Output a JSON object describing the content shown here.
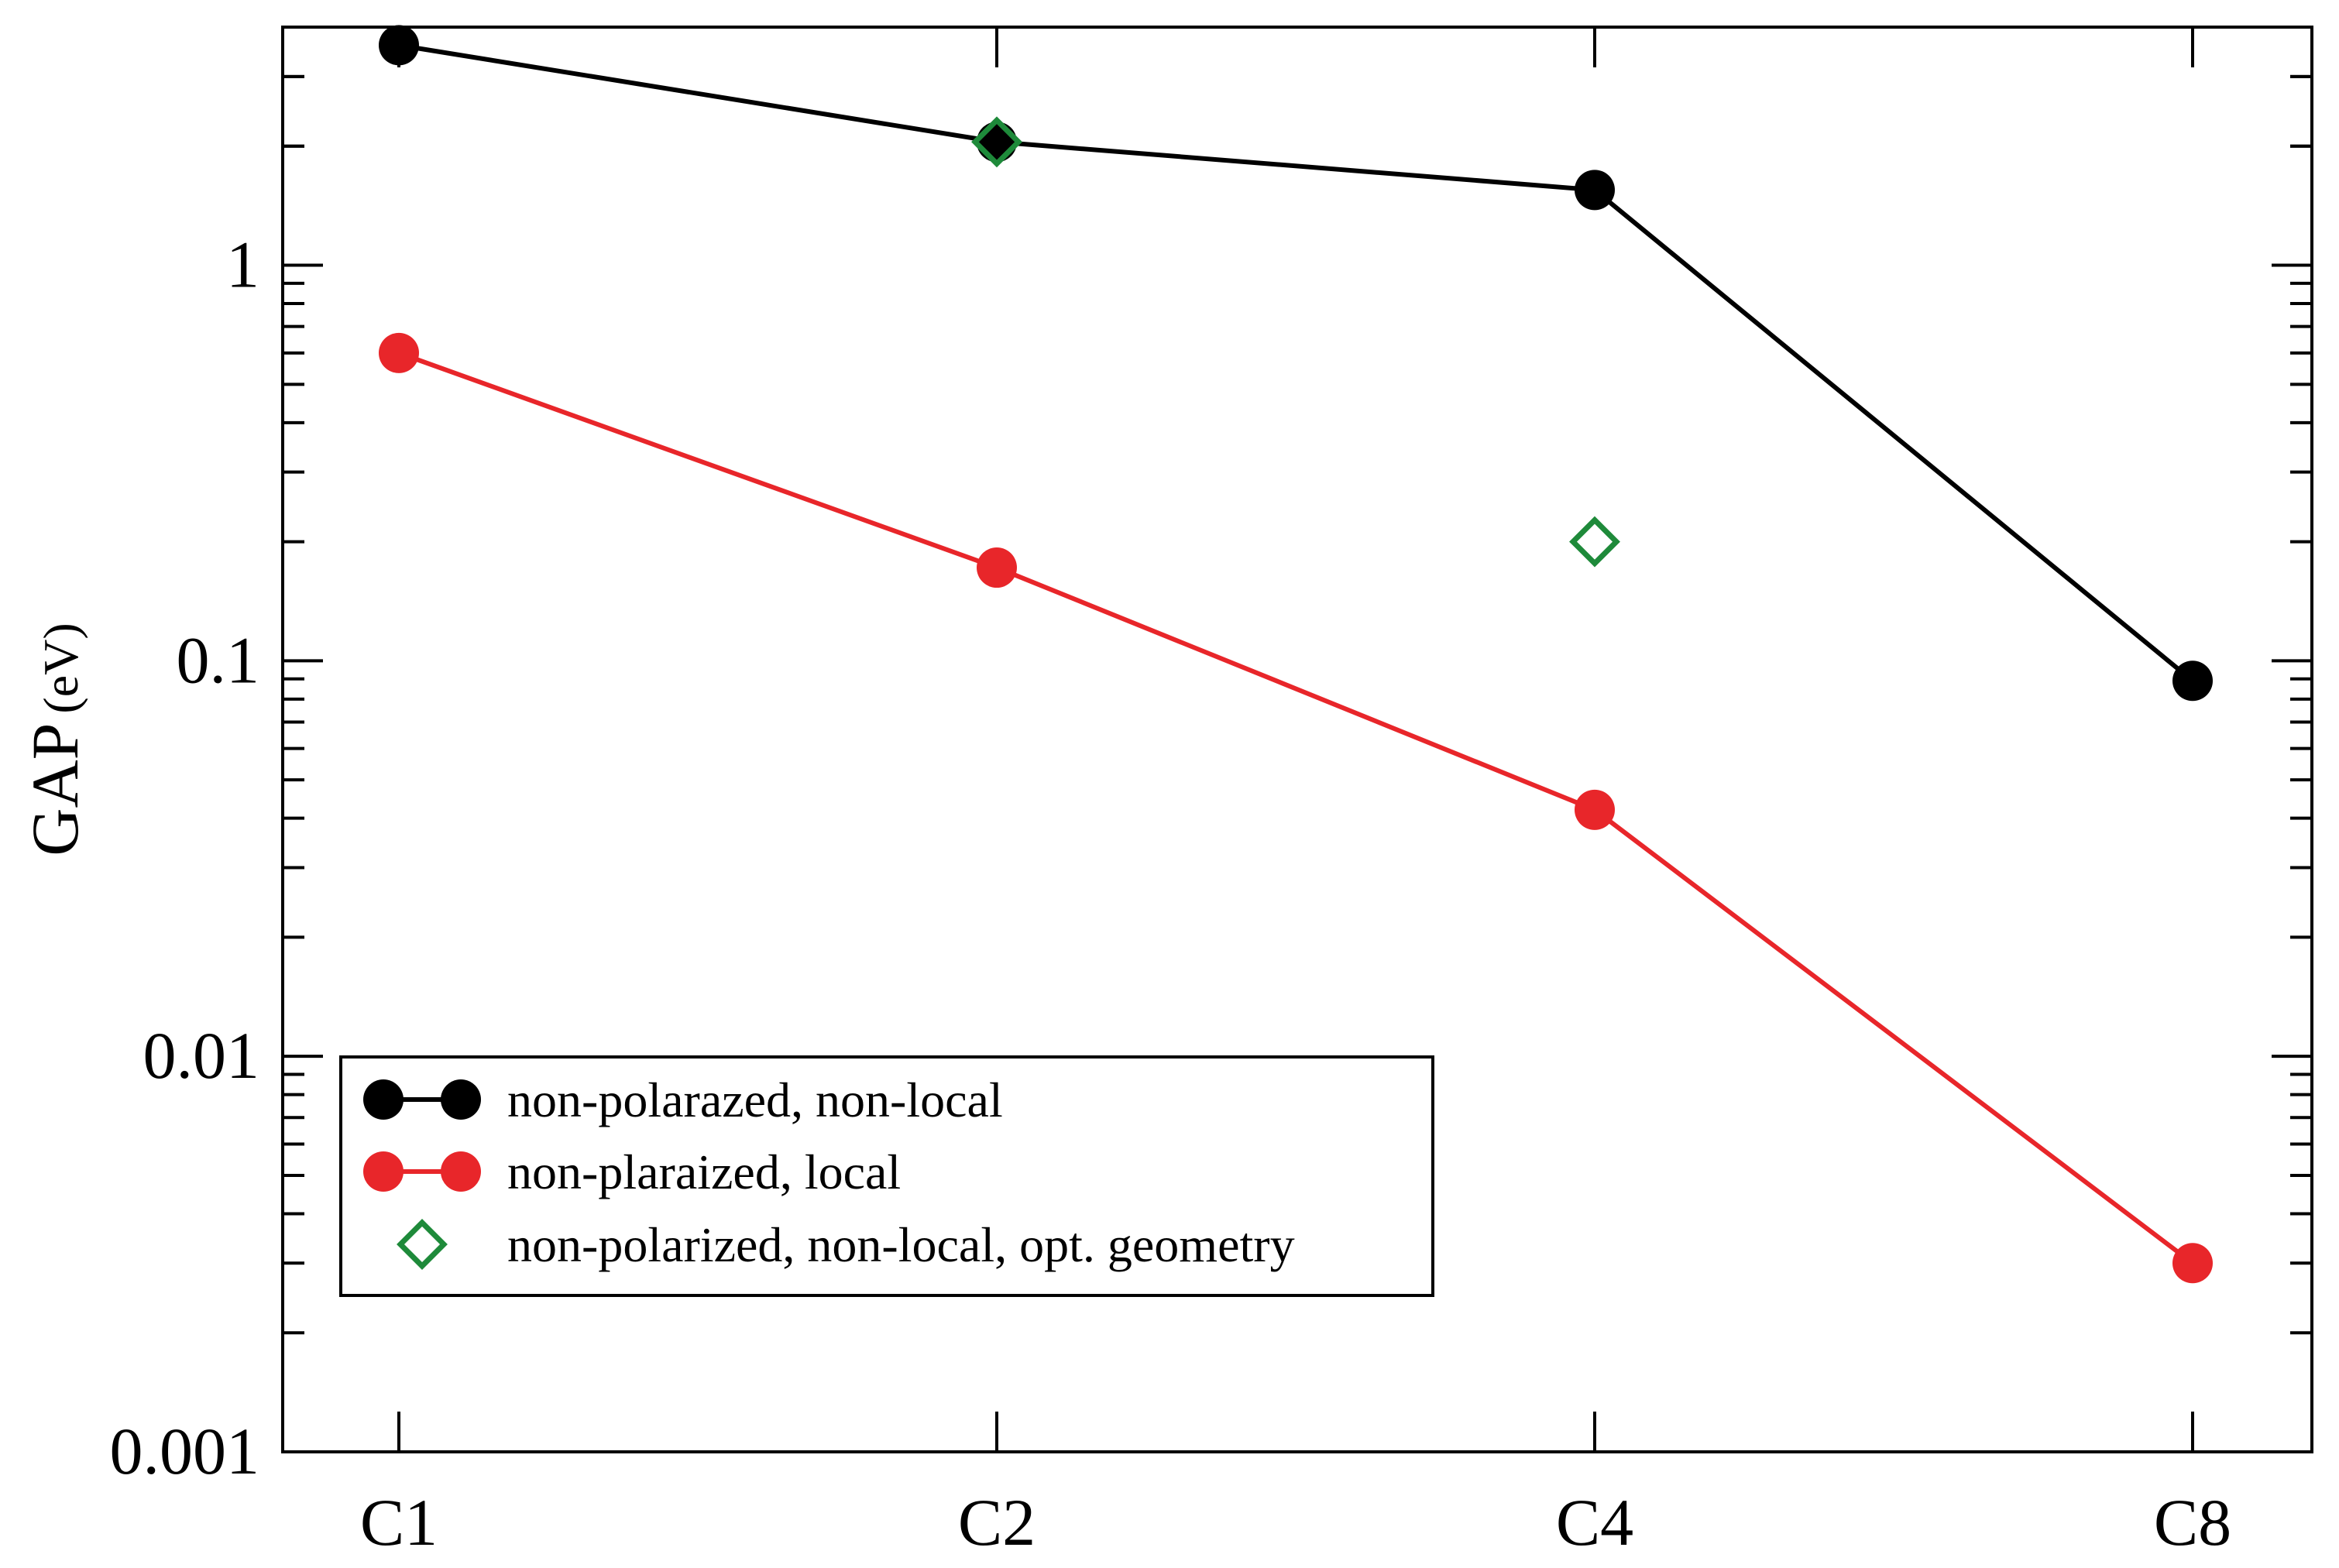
{
  "chart_data": {
    "type": "line",
    "title": "",
    "xlabel": "",
    "ylabel": "GAP",
    "ylabel_unit": "(eV)",
    "yscale": "log",
    "ylim": [
      0.001,
      4
    ],
    "yticks": [
      0.001,
      0.01,
      0.1,
      1
    ],
    "ytick_labels": [
      "0.001",
      "0.01",
      "0.1",
      "1"
    ],
    "categories": [
      "C1",
      "C2",
      "C4",
      "C8"
    ],
    "grid": false,
    "legend_position": "bottom-left",
    "series": [
      {
        "name": "non-polarazed, non-local",
        "color": "#000000",
        "marker": "circle",
        "line": true,
        "values": [
          3.6,
          2.05,
          1.55,
          0.089
        ]
      },
      {
        "name": "non-plaraized, local",
        "color": "#e8262a",
        "marker": "circle",
        "line": true,
        "values": [
          0.6,
          0.172,
          0.042,
          0.003
        ]
      },
      {
        "name": "non-polarized, non-local, opt. geometry",
        "color": "#1e8a3a",
        "marker": "diamond-open",
        "line": false,
        "values": [
          null,
          2.05,
          0.2,
          null
        ]
      }
    ]
  }
}
